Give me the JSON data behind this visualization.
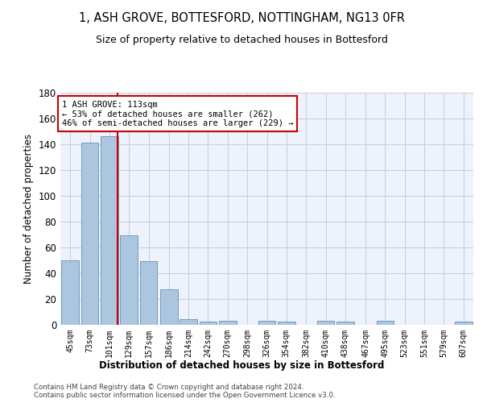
{
  "title1": "1, ASH GROVE, BOTTESFORD, NOTTINGHAM, NG13 0FR",
  "title2": "Size of property relative to detached houses in Bottesford",
  "xlabel": "Distribution of detached houses by size in Bottesford",
  "ylabel": "Number of detached properties",
  "footer1": "Contains HM Land Registry data © Crown copyright and database right 2024.",
  "footer2": "Contains public sector information licensed under the Open Government Licence v3.0.",
  "annotation_line1": "1 ASH GROVE: 113sqm",
  "annotation_line2": "← 53% of detached houses are smaller (262)",
  "annotation_line3": "46% of semi-detached houses are larger (229) →",
  "subject_value": 113,
  "bins": [
    45,
    73,
    101,
    129,
    157,
    186,
    214,
    242,
    270,
    298,
    326,
    354,
    382,
    410,
    438,
    467,
    495,
    523,
    551,
    579,
    607
  ],
  "bin_labels": [
    "45sqm",
    "73sqm",
    "101sqm",
    "129sqm",
    "157sqm",
    "186sqm",
    "214sqm",
    "242sqm",
    "270sqm",
    "298sqm",
    "326sqm",
    "354sqm",
    "382sqm",
    "410sqm",
    "438sqm",
    "467sqm",
    "495sqm",
    "523sqm",
    "551sqm",
    "579sqm",
    "607sqm"
  ],
  "values": [
    50,
    141,
    146,
    69,
    49,
    27,
    4,
    2,
    3,
    0,
    3,
    2,
    0,
    3,
    2,
    0,
    3,
    0,
    0,
    0,
    2
  ],
  "bar_color": "#adc6e0",
  "bar_edge_color": "#6a9fc0",
  "highlight_line_color": "#cc0000",
  "annotation_box_color": "#cc0000",
  "bg_color": "#eef2fb",
  "grid_color": "#c8cfe0",
  "ylim": [
    0,
    180
  ],
  "yticks": [
    0,
    20,
    40,
    60,
    80,
    100,
    120,
    140,
    160,
    180
  ]
}
